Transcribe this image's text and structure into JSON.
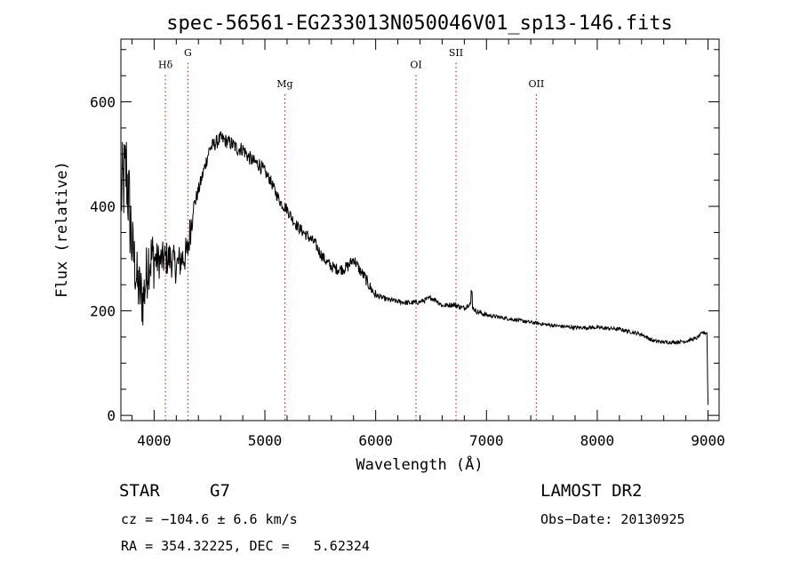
{
  "chart_data": {
    "type": "line",
    "title": "spec-56561-EG233013N050046V01_sp13-146.fits",
    "xlabel": "Wavelength (Å)",
    "ylabel": "Flux (relative)",
    "xlim": [
      3700,
      9100
    ],
    "ylim": [
      -10,
      720
    ],
    "xticks": [
      4000,
      5000,
      6000,
      7000,
      8000,
      9000
    ],
    "yticks": [
      0,
      200,
      400,
      600
    ],
    "x_minor_step": 200,
    "y_minor_step": 50,
    "grid": false,
    "series_color": "#000000",
    "marker_color": "#cc0000",
    "spectral_lines": [
      {
        "label": "Hδ",
        "wavelength": 4102,
        "label_flux": 665
      },
      {
        "label": "G",
        "wavelength": 4305,
        "label_flux": 688
      },
      {
        "label": "Mg",
        "wavelength": 5180,
        "label_flux": 628
      },
      {
        "label": "OI",
        "wavelength": 6364,
        "label_flux": 665
      },
      {
        "label": "SII",
        "wavelength": 6725,
        "label_flux": 688
      },
      {
        "label": "OII",
        "wavelength": 7450,
        "label_flux": 628
      }
    ],
    "spectrum_anchors": {
      "wavelength": [
        3700,
        3750,
        3800,
        3850,
        3900,
        3950,
        4000,
        4050,
        4100,
        4150,
        4200,
        4250,
        4300,
        4350,
        4400,
        4450,
        4500,
        4550,
        4600,
        4650,
        4700,
        4750,
        4800,
        4850,
        4900,
        4950,
        5000,
        5050,
        5100,
        5150,
        5200,
        5250,
        5300,
        5350,
        5400,
        5450,
        5500,
        5550,
        5600,
        5650,
        5700,
        5750,
        5800,
        5850,
        5900,
        5950,
        6000,
        6100,
        6200,
        6300,
        6400,
        6500,
        6550,
        6600,
        6700,
        6800,
        6850,
        6900,
        7000,
        7200,
        7400,
        7600,
        7800,
        8000,
        8200,
        8400,
        8500,
        8600,
        8700,
        8800,
        8900,
        8950,
        8990,
        9000
      ],
      "flux": [
        420,
        470,
        330,
        250,
        220,
        300,
        300,
        295,
        300,
        300,
        285,
        300,
        310,
        395,
        430,
        470,
        510,
        520,
        530,
        525,
        520,
        510,
        510,
        495,
        485,
        480,
        465,
        450,
        425,
        405,
        395,
        375,
        360,
        350,
        340,
        330,
        310,
        295,
        285,
        280,
        280,
        285,
        300,
        280,
        265,
        245,
        230,
        222,
        218,
        215,
        217,
        225,
        220,
        210,
        212,
        205,
        215,
        200,
        192,
        185,
        178,
        172,
        168,
        168,
        165,
        155,
        143,
        140,
        140,
        142,
        148,
        158,
        158,
        20
      ]
    }
  },
  "info": {
    "object_class": "STAR",
    "subclass": "G7",
    "survey": "LAMOST DR2",
    "cz": "cz = −104.6 ± 6.6 km/s",
    "obs_date": "Obs−Date: 20130925",
    "coords": "RA = 354.32225, DEC =   5.62324"
  }
}
